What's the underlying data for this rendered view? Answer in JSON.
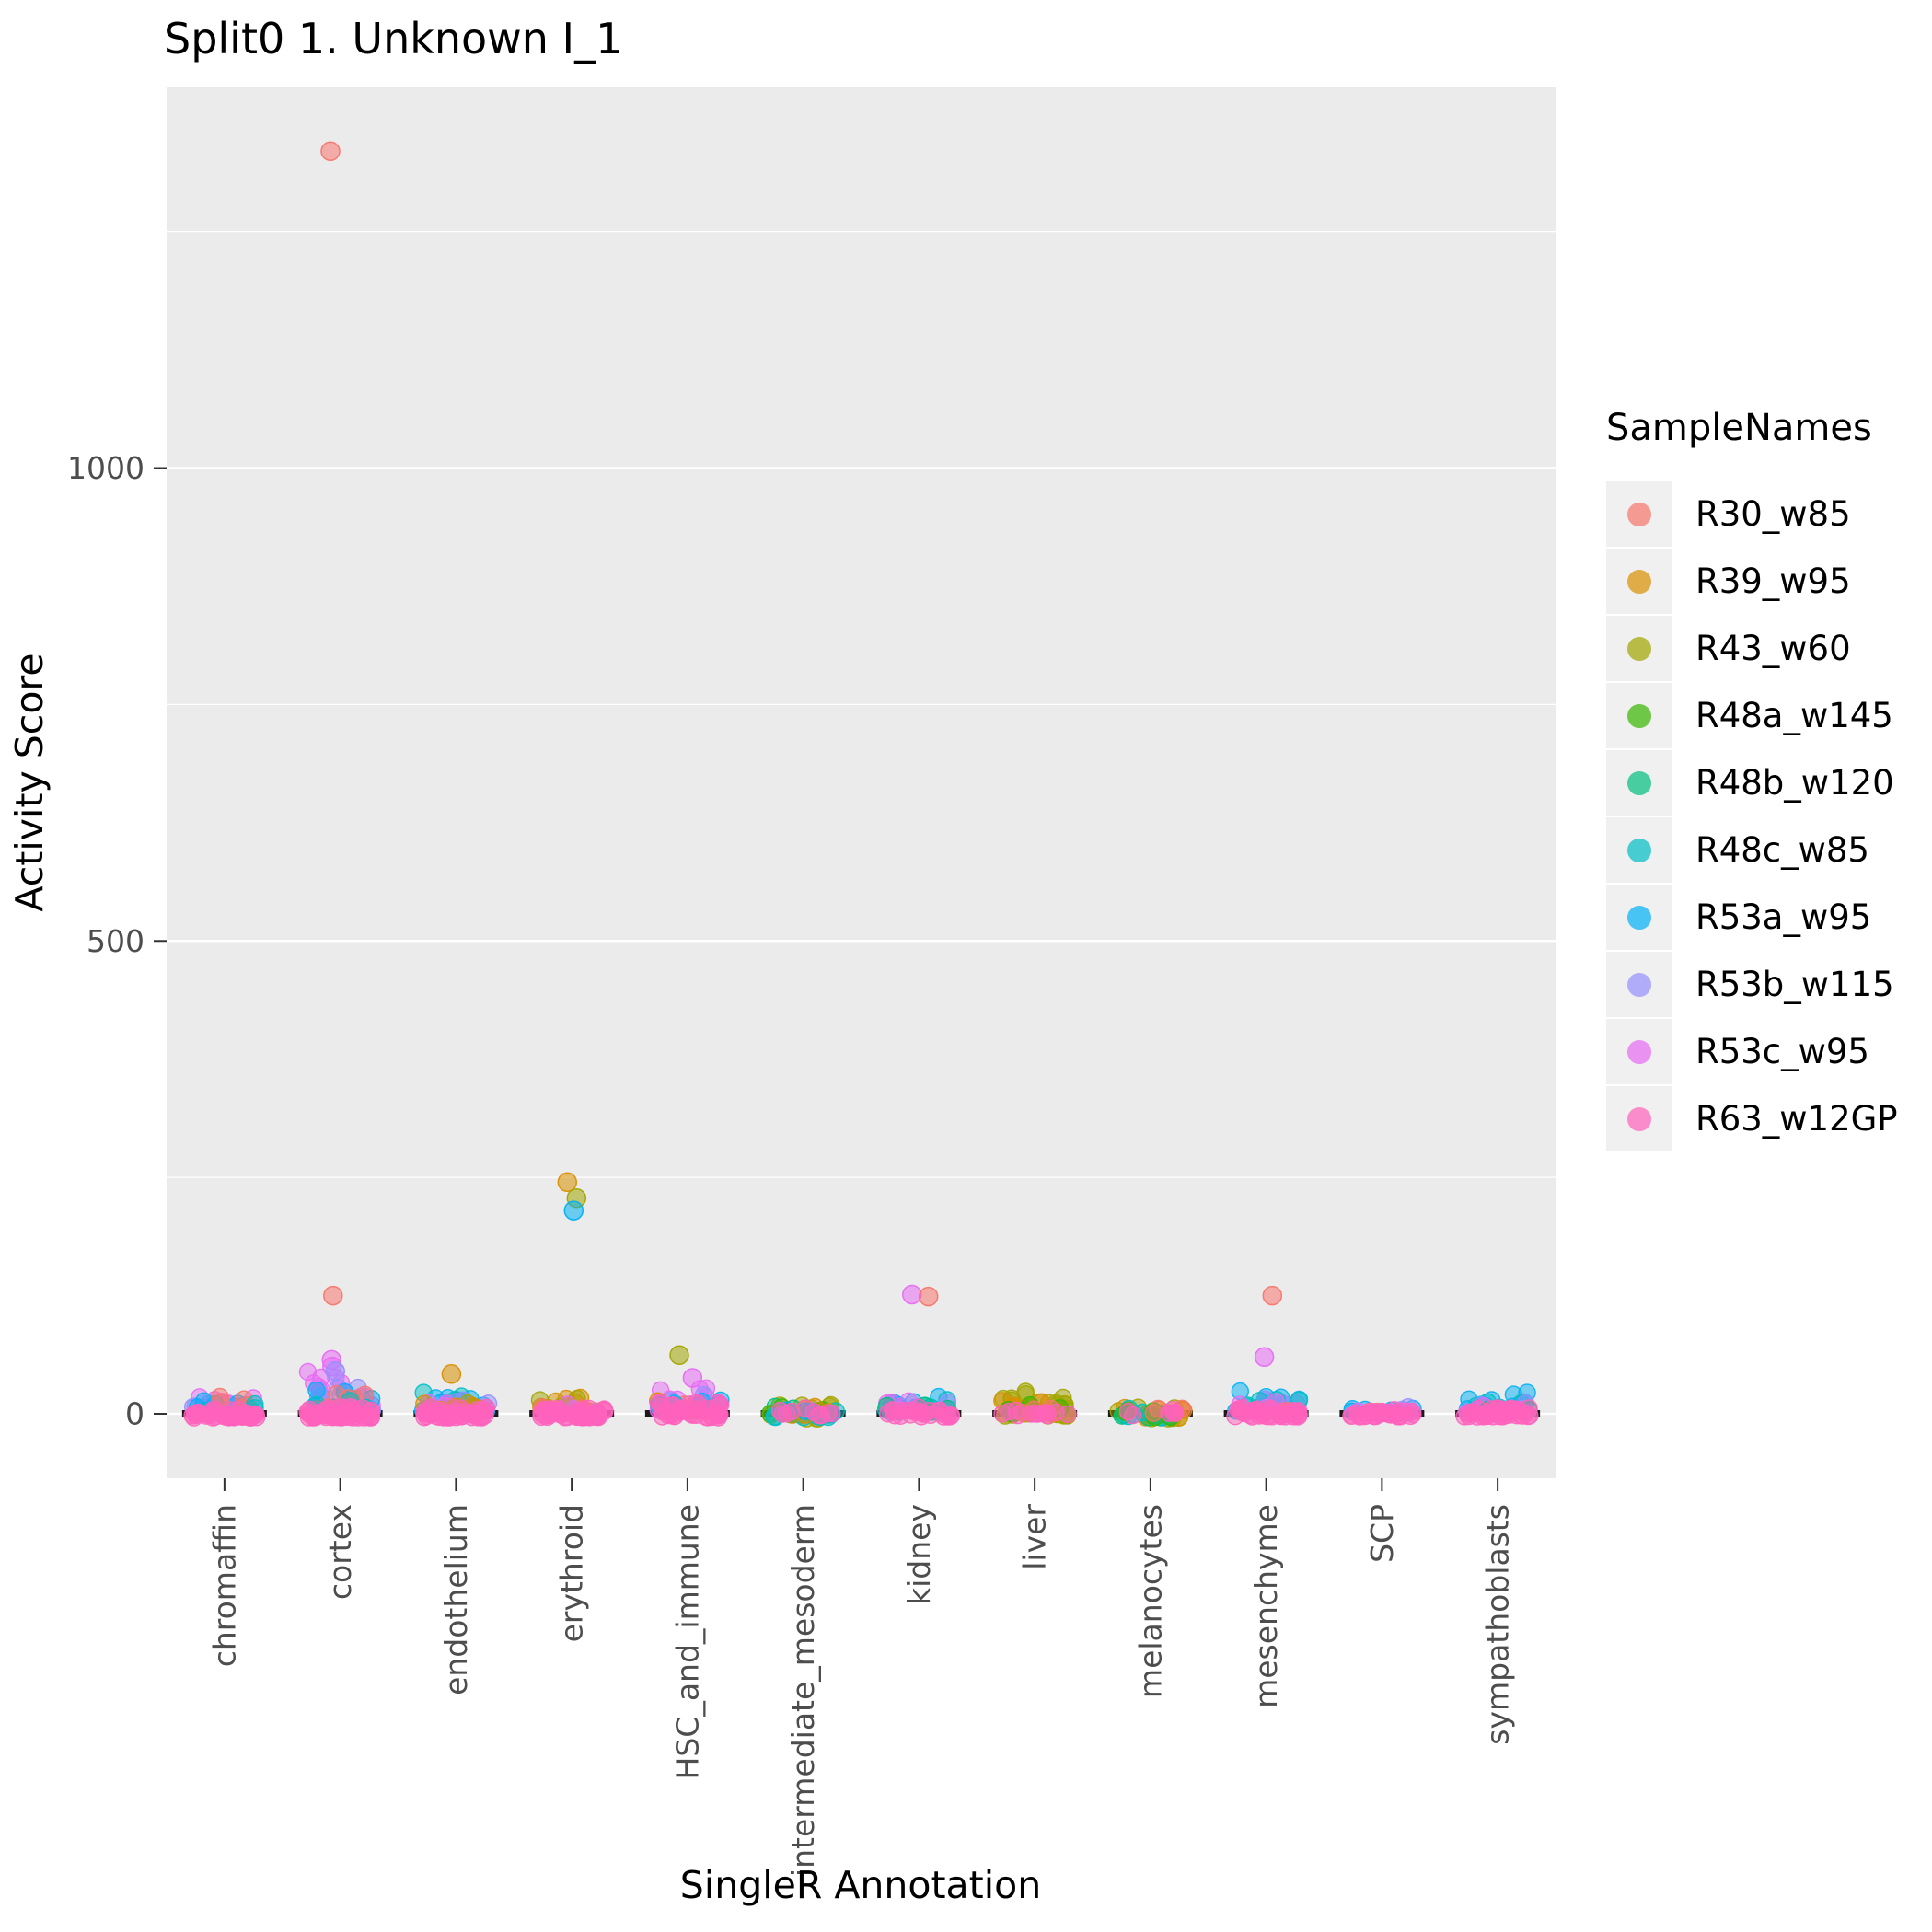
{
  "title": "Split0 1. Unknown I_1",
  "axes": {
    "x_label": "SingleR Annotation",
    "y_label": "Activity Score"
  },
  "legend": {
    "title": "SampleNames",
    "entries": [
      {
        "label": "R30_w85",
        "color": "#F8766D"
      },
      {
        "label": "R39_w95",
        "color": "#D89000"
      },
      {
        "label": "R43_w60",
        "color": "#A3A500"
      },
      {
        "label": "R48a_w145",
        "color": "#39B600"
      },
      {
        "label": "R48b_w120",
        "color": "#00BF7D"
      },
      {
        "label": "R48c_w85",
        "color": "#00BFC4"
      },
      {
        "label": "R53a_w95",
        "color": "#00B0F6"
      },
      {
        "label": "R53b_w115",
        "color": "#9590FF"
      },
      {
        "label": "R53c_w95",
        "color": "#E76BF3"
      },
      {
        "label": "R63_w12GP",
        "color": "#FF62BC"
      }
    ]
  },
  "panel": {
    "background": "#EBEBEB",
    "gridline_color": "#FFFFFF",
    "tick_text_color": "#4D4D4D"
  },
  "chart_data": {
    "type": "scatter",
    "title": "Split0 1. Unknown I_1",
    "xlabel": "SingleR Annotation",
    "ylabel": "Activity Score",
    "ylim": [
      -70,
      1405
    ],
    "y_ticks": [
      0,
      500,
      1000
    ],
    "y_minor_gridlines": [
      250,
      750,
      1250
    ],
    "grid": true,
    "legend_position": "right",
    "median_value": 0,
    "categories": [
      "chromaffin",
      "cortex",
      "endothelium",
      "erythroid",
      "HSC_and_immune",
      "intermediate_mesoderm",
      "kidney",
      "liver",
      "melanocytes",
      "mesenchyme",
      "SCP",
      "sympathoblasts"
    ],
    "samples": [
      {
        "name": "R30_w85",
        "color": "#F8766D"
      },
      {
        "name": "R39_w95",
        "color": "#D89000"
      },
      {
        "name": "R43_w60",
        "color": "#A3A500"
      },
      {
        "name": "R48a_w145",
        "color": "#39B600"
      },
      {
        "name": "R48b_w120",
        "color": "#00BF7D"
      },
      {
        "name": "R48c_w85",
        "color": "#00BFC4"
      },
      {
        "name": "R53a_w95",
        "color": "#00B0F6"
      },
      {
        "name": "R53b_w115",
        "color": "#9590FF"
      },
      {
        "name": "R53c_w95",
        "color": "#E76BF3"
      },
      {
        "name": "R63_w12GP",
        "color": "#FF62BC"
      }
    ],
    "clusters": [
      {
        "category": "chromaffin",
        "sample": "R53c_w95",
        "n": 10,
        "min": 2,
        "max": 20
      },
      {
        "category": "chromaffin",
        "sample": "R53b_w115",
        "n": 8,
        "min": 4,
        "max": 22
      },
      {
        "category": "chromaffin",
        "sample": "R53a_w95",
        "n": 6,
        "min": 3,
        "max": 18
      },
      {
        "category": "chromaffin",
        "sample": "R30_w85",
        "n": 5,
        "min": 6,
        "max": 20
      },
      {
        "category": "chromaffin",
        "sample": "R48c_w85",
        "n": 3,
        "min": 3,
        "max": 14
      },
      {
        "category": "chromaffin",
        "sample": "R63_w12GP",
        "n": 45,
        "min": -4,
        "max": 6
      },
      {
        "category": "cortex",
        "sample": "R53c_w95",
        "n": 22,
        "min": 2,
        "max": 45
      },
      {
        "category": "cortex",
        "sample": "R53b_w115",
        "n": 12,
        "min": 3,
        "max": 30
      },
      {
        "category": "cortex",
        "sample": "R53a_w95",
        "n": 8,
        "min": 3,
        "max": 25
      },
      {
        "category": "cortex",
        "sample": "R30_w85",
        "n": 6,
        "min": 5,
        "max": 28
      },
      {
        "category": "cortex",
        "sample": "R48c_w85",
        "n": 4,
        "min": 3,
        "max": 15
      },
      {
        "category": "cortex",
        "sample": "R63_w12GP",
        "n": 55,
        "min": -4,
        "max": 8
      },
      {
        "category": "endothelium",
        "sample": "R53a_w95",
        "n": 14,
        "min": 3,
        "max": 28
      },
      {
        "category": "endothelium",
        "sample": "R48c_w85",
        "n": 8,
        "min": 3,
        "max": 24
      },
      {
        "category": "endothelium",
        "sample": "R53c_w95",
        "n": 8,
        "min": 2,
        "max": 20
      },
      {
        "category": "endothelium",
        "sample": "R53b_w115",
        "n": 6,
        "min": 3,
        "max": 18
      },
      {
        "category": "endothelium",
        "sample": "R43_w60",
        "n": 4,
        "min": 2,
        "max": 12
      },
      {
        "category": "endothelium",
        "sample": "R39_w95",
        "n": 4,
        "min": 2,
        "max": 14
      },
      {
        "category": "endothelium",
        "sample": "R63_w12GP",
        "n": 45,
        "min": -4,
        "max": 8
      },
      {
        "category": "erythroid",
        "sample": "R39_w95",
        "n": 10,
        "min": 2,
        "max": 20
      },
      {
        "category": "erythroid",
        "sample": "R43_w60",
        "n": 8,
        "min": 2,
        "max": 16
      },
      {
        "category": "erythroid",
        "sample": "R30_w85",
        "n": 4,
        "min": 3,
        "max": 12
      },
      {
        "category": "erythroid",
        "sample": "R53c_w95",
        "n": 5,
        "min": 2,
        "max": 10
      },
      {
        "category": "erythroid",
        "sample": "R63_w12GP",
        "n": 45,
        "min": -4,
        "max": 6
      },
      {
        "category": "HSC_and_immune",
        "sample": "R53c_w95",
        "n": 14,
        "min": 3,
        "max": 30
      },
      {
        "category": "HSC_and_immune",
        "sample": "R53b_w115",
        "n": 6,
        "min": 3,
        "max": 20
      },
      {
        "category": "HSC_and_immune",
        "sample": "R39_w95",
        "n": 5,
        "min": 3,
        "max": 16
      },
      {
        "category": "HSC_and_immune",
        "sample": "R30_w85",
        "n": 4,
        "min": 3,
        "max": 14
      },
      {
        "category": "HSC_and_immune",
        "sample": "R53a_w95",
        "n": 5,
        "min": 3,
        "max": 15
      },
      {
        "category": "HSC_and_immune",
        "sample": "R63_w12GP",
        "n": 40,
        "min": -4,
        "max": 12
      },
      {
        "category": "intermediate_mesoderm",
        "sample": "R43_w60",
        "n": 14,
        "min": -5,
        "max": 12
      },
      {
        "category": "intermediate_mesoderm",
        "sample": "R48b_w120",
        "n": 8,
        "min": -4,
        "max": 9
      },
      {
        "category": "intermediate_mesoderm",
        "sample": "R48a_w145",
        "n": 6,
        "min": -4,
        "max": 8
      },
      {
        "category": "intermediate_mesoderm",
        "sample": "R48c_w85",
        "n": 7,
        "min": -4,
        "max": 8
      },
      {
        "category": "intermediate_mesoderm",
        "sample": "R39_w95",
        "n": 5,
        "min": -2,
        "max": 10
      },
      {
        "category": "intermediate_mesoderm",
        "sample": "R53a_w95",
        "n": 4,
        "min": -2,
        "max": 6
      },
      {
        "category": "intermediate_mesoderm",
        "sample": "R63_w12GP",
        "n": 10,
        "min": -2,
        "max": 6
      },
      {
        "category": "kidney",
        "sample": "R53a_w95",
        "n": 14,
        "min": 2,
        "max": 18
      },
      {
        "category": "kidney",
        "sample": "R48c_w85",
        "n": 8,
        "min": 2,
        "max": 15
      },
      {
        "category": "kidney",
        "sample": "R53c_w95",
        "n": 7,
        "min": 2,
        "max": 15
      },
      {
        "category": "kidney",
        "sample": "R53b_w115",
        "n": 5,
        "min": 2,
        "max": 12
      },
      {
        "category": "kidney",
        "sample": "R48b_w120",
        "n": 4,
        "min": 2,
        "max": 10
      },
      {
        "category": "kidney",
        "sample": "R63_w12GP",
        "n": 25,
        "min": -3,
        "max": 7
      },
      {
        "category": "liver",
        "sample": "R43_w60",
        "n": 32,
        "min": -2,
        "max": 24
      },
      {
        "category": "liver",
        "sample": "R39_w95",
        "n": 10,
        "min": 0,
        "max": 16
      },
      {
        "category": "liver",
        "sample": "R48a_w145",
        "n": 5,
        "min": 0,
        "max": 10
      },
      {
        "category": "liver",
        "sample": "R30_w85",
        "n": 3,
        "min": 0,
        "max": 8
      },
      {
        "category": "liver",
        "sample": "R63_w12GP",
        "n": 12,
        "min": -2,
        "max": 5
      },
      {
        "category": "melanocytes",
        "sample": "R43_w60",
        "n": 10,
        "min": -6,
        "max": 8
      },
      {
        "category": "melanocytes",
        "sample": "R39_w95",
        "n": 9,
        "min": -4,
        "max": 8
      },
      {
        "category": "melanocytes",
        "sample": "R48b_w120",
        "n": 6,
        "min": -4,
        "max": 6
      },
      {
        "category": "melanocytes",
        "sample": "R48c_w85",
        "n": 6,
        "min": -4,
        "max": 6
      },
      {
        "category": "melanocytes",
        "sample": "R48a_w145",
        "n": 5,
        "min": -4,
        "max": 6
      },
      {
        "category": "melanocytes",
        "sample": "R30_w85",
        "n": 4,
        "min": -2,
        "max": 6
      },
      {
        "category": "melanocytes",
        "sample": "R63_w12GP",
        "n": 6,
        "min": -2,
        "max": 5
      },
      {
        "category": "mesenchyme",
        "sample": "R53a_w95",
        "n": 14,
        "min": 3,
        "max": 24
      },
      {
        "category": "mesenchyme",
        "sample": "R53b_w115",
        "n": 8,
        "min": 3,
        "max": 20
      },
      {
        "category": "mesenchyme",
        "sample": "R48c_w85",
        "n": 6,
        "min": 2,
        "max": 15
      },
      {
        "category": "mesenchyme",
        "sample": "R53c_w95",
        "n": 7,
        "min": 2,
        "max": 18
      },
      {
        "category": "mesenchyme",
        "sample": "R30_w85",
        "n": 3,
        "min": 2,
        "max": 10
      },
      {
        "category": "mesenchyme",
        "sample": "R63_w12GP",
        "n": 35,
        "min": -3,
        "max": 7
      },
      {
        "category": "SCP",
        "sample": "R53a_w95",
        "n": 8,
        "min": 1,
        "max": 12
      },
      {
        "category": "SCP",
        "sample": "R53b_w115",
        "n": 5,
        "min": 1,
        "max": 10
      },
      {
        "category": "SCP",
        "sample": "R53c_w95",
        "n": 4,
        "min": 1,
        "max": 8
      },
      {
        "category": "SCP",
        "sample": "R30_w85",
        "n": 2,
        "min": 1,
        "max": 6
      },
      {
        "category": "SCP",
        "sample": "R63_w12GP",
        "n": 30,
        "min": -3,
        "max": 5
      },
      {
        "category": "sympathoblasts",
        "sample": "R53a_w95",
        "n": 14,
        "min": 3,
        "max": 24
      },
      {
        "category": "sympathoblasts",
        "sample": "R48c_w85",
        "n": 6,
        "min": 2,
        "max": 15
      },
      {
        "category": "sympathoblasts",
        "sample": "R53b_w115",
        "n": 5,
        "min": 2,
        "max": 12
      },
      {
        "category": "sympathoblasts",
        "sample": "R53c_w95",
        "n": 4,
        "min": 2,
        "max": 10
      },
      {
        "category": "sympathoblasts",
        "sample": "R48b_w120",
        "n": 3,
        "min": 2,
        "max": 10
      },
      {
        "category": "sympathoblasts",
        "sample": "R63_w12GP",
        "n": 40,
        "min": -3,
        "max": 6
      }
    ],
    "outliers": [
      {
        "category": "cortex",
        "sample": "R30_w85",
        "value": 1335
      },
      {
        "category": "cortex",
        "sample": "R30_w85",
        "value": 125
      },
      {
        "category": "cortex",
        "sample": "R53c_w95",
        "value": 57
      },
      {
        "category": "cortex",
        "sample": "R53c_w95",
        "value": 50
      },
      {
        "category": "cortex",
        "sample": "R53b_w115",
        "value": 45
      },
      {
        "category": "endothelium",
        "sample": "R39_w95",
        "value": 42
      },
      {
        "category": "erythroid",
        "sample": "R39_w95",
        "value": 245
      },
      {
        "category": "erythroid",
        "sample": "R43_w60",
        "value": 228
      },
      {
        "category": "erythroid",
        "sample": "R53a_w95",
        "value": 215
      },
      {
        "category": "HSC_and_immune",
        "sample": "R43_w60",
        "value": 62
      },
      {
        "category": "HSC_and_immune",
        "sample": "R53c_w95",
        "value": 38
      },
      {
        "category": "kidney",
        "sample": "R53c_w95",
        "value": 126
      },
      {
        "category": "kidney",
        "sample": "R30_w85",
        "value": 124
      },
      {
        "category": "mesenchyme",
        "sample": "R30_w85",
        "value": 125
      },
      {
        "category": "mesenchyme",
        "sample": "R53c_w95",
        "value": 60
      }
    ]
  }
}
